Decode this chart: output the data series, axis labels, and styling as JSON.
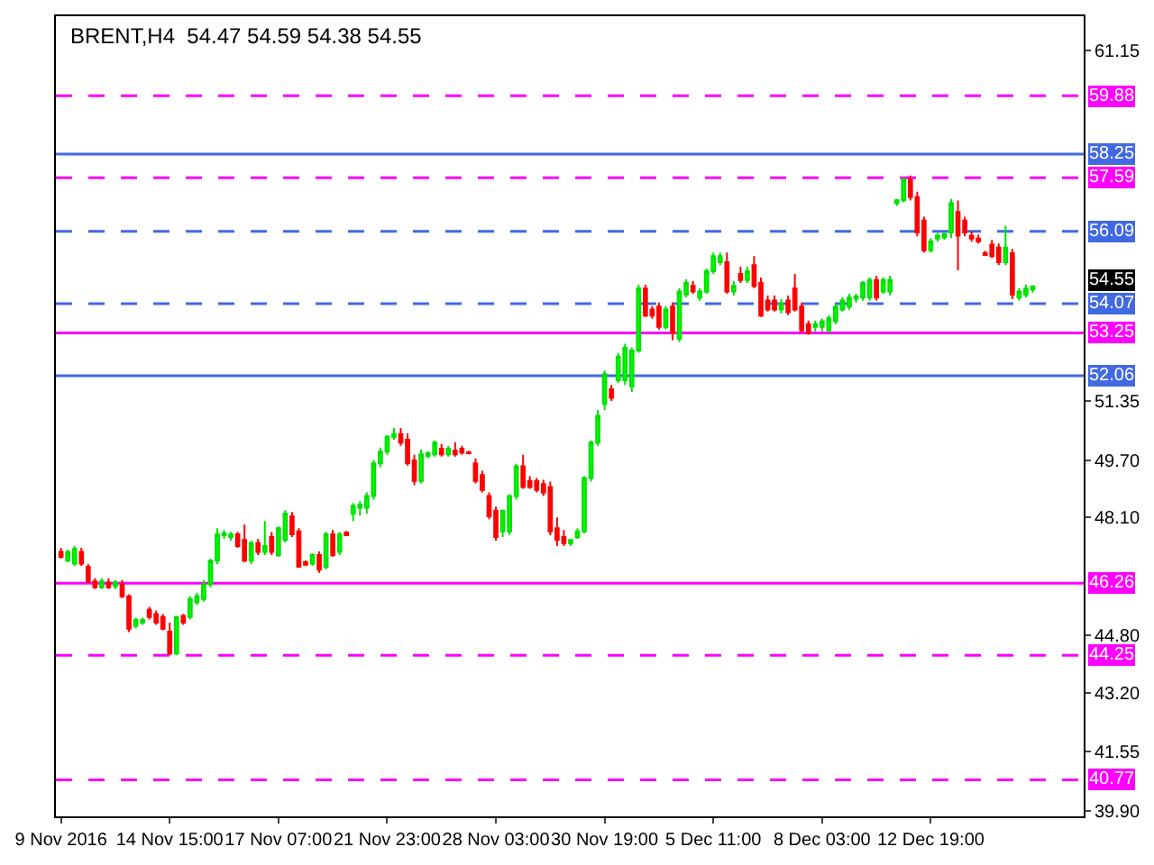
{
  "chart_data": {
    "type": "candlestick",
    "title": "BRENT,H4  54.47 54.59 54.38 54.55",
    "categories": [
      "9 Nov 2016",
      null,
      null,
      null,
      null,
      null,
      null,
      null,
      null,
      null,
      null,
      null,
      null,
      null,
      null,
      null,
      "14 Nov 15:00",
      null,
      null,
      null,
      null,
      null,
      null,
      null,
      null,
      null,
      null,
      null,
      null,
      null,
      null,
      null,
      "17 Nov 07:00",
      null,
      null,
      null,
      null,
      null,
      null,
      null,
      null,
      null,
      null,
      null,
      null,
      null,
      null,
      null,
      "21 Nov 23:00",
      null,
      null,
      null,
      null,
      null,
      null,
      null,
      null,
      null,
      null,
      null,
      null,
      null,
      null,
      null,
      "28 Nov 03:00",
      null,
      null,
      null,
      null,
      null,
      null,
      null,
      null,
      null,
      null,
      null,
      null,
      null,
      null,
      null,
      "30 Nov 19:00",
      null,
      null,
      null,
      null,
      null,
      null,
      null,
      null,
      null,
      null,
      null,
      null,
      null,
      null,
      null,
      "5 Dec 11:00",
      null,
      null,
      null,
      null,
      null,
      null,
      null,
      null,
      null,
      null,
      null,
      null,
      null,
      null,
      null,
      "8 Dec 03:00",
      null,
      null,
      null,
      null,
      null,
      null,
      null,
      null,
      null,
      null,
      null,
      null,
      null,
      null,
      null,
      "12 Dec 19:00",
      null,
      null,
      null,
      null,
      null,
      null,
      null,
      null,
      null,
      null,
      null,
      null,
      null,
      null,
      null
    ],
    "ohlc": [
      [
        47.14,
        47.25,
        46.95,
        47.0
      ],
      [
        46.89,
        47.2,
        46.85,
        47.14
      ],
      [
        46.81,
        47.3,
        46.75,
        47.22
      ],
      [
        47.14,
        47.25,
        46.75,
        46.81
      ],
      [
        46.72,
        46.8,
        46.25,
        46.31
      ],
      [
        46.31,
        46.4,
        46.1,
        46.15
      ],
      [
        46.15,
        46.4,
        46.1,
        46.31
      ],
      [
        46.28,
        46.4,
        46.1,
        46.15
      ],
      [
        46.18,
        46.35,
        46.1,
        46.28
      ],
      [
        46.23,
        46.35,
        45.85,
        45.9
      ],
      [
        45.9,
        45.95,
        44.9,
        44.99
      ],
      [
        45.07,
        45.3,
        45.0,
        45.24
      ],
      [
        45.16,
        45.3,
        45.1,
        45.24
      ],
      [
        45.52,
        45.6,
        45.25,
        45.32
      ],
      [
        45.4,
        45.5,
        45.1,
        45.16
      ],
      [
        45.32,
        45.4,
        44.95,
        44.99
      ],
      [
        44.91,
        45.16,
        44.25,
        44.3
      ],
      [
        44.3,
        45.35,
        44.25,
        45.32
      ],
      [
        45.35,
        45.4,
        45.1,
        45.16
      ],
      [
        45.32,
        45.9,
        45.25,
        45.82
      ],
      [
        45.73,
        46.0,
        45.65,
        45.9
      ],
      [
        45.82,
        46.35,
        45.75,
        46.23
      ],
      [
        46.23,
        46.95,
        46.15,
        46.89
      ],
      [
        46.89,
        47.8,
        46.8,
        47.63
      ],
      [
        47.6,
        47.75,
        47.5,
        47.66
      ],
      [
        47.55,
        47.7,
        47.45,
        47.63
      ],
      [
        47.63,
        47.7,
        47.25,
        47.3
      ],
      [
        47.47,
        47.9,
        46.85,
        46.89
      ],
      [
        46.89,
        47.45,
        46.8,
        47.38
      ],
      [
        47.38,
        47.5,
        47.05,
        47.14
      ],
      [
        47.14,
        48.0,
        47.05,
        47.3
      ],
      [
        47.55,
        47.7,
        47.05,
        47.14
      ],
      [
        47.05,
        47.85,
        47.0,
        47.8
      ],
      [
        47.47,
        48.3,
        47.4,
        48.21
      ],
      [
        48.13,
        48.25,
        47.55,
        47.63
      ],
      [
        47.71,
        47.8,
        46.7,
        46.72
      ],
      [
        46.85,
        46.9,
        46.75,
        46.78
      ],
      [
        46.81,
        47.1,
        46.75,
        47.05
      ],
      [
        47.05,
        47.15,
        46.55,
        46.64
      ],
      [
        46.72,
        47.7,
        46.65,
        47.63
      ],
      [
        47.63,
        47.75,
        47.0,
        47.05
      ],
      [
        47.14,
        47.7,
        47.05,
        47.63
      ],
      [
        47.68,
        47.72,
        47.58,
        47.6
      ],
      [
        48.21,
        48.5,
        48.0,
        48.42
      ],
      [
        48.37,
        48.55,
        48.15,
        48.46
      ],
      [
        48.37,
        48.8,
        48.2,
        48.7
      ],
      [
        48.7,
        49.7,
        48.6,
        49.61
      ],
      [
        49.61,
        50.05,
        49.5,
        49.94
      ],
      [
        49.94,
        50.4,
        49.85,
        50.35
      ],
      [
        50.35,
        50.6,
        50.27,
        50.43
      ],
      [
        50.43,
        50.6,
        50.1,
        50.19
      ],
      [
        50.27,
        50.45,
        49.55,
        49.61
      ],
      [
        49.69,
        49.85,
        49.0,
        49.12
      ],
      [
        49.12,
        50.0,
        49.05,
        49.86
      ],
      [
        49.82,
        49.95,
        49.75,
        49.89
      ],
      [
        49.86,
        50.25,
        49.8,
        50.19
      ],
      [
        50.02,
        50.15,
        49.8,
        49.86
      ],
      [
        49.86,
        50.1,
        49.8,
        50.02
      ],
      [
        49.97,
        50.2,
        49.8,
        49.86
      ],
      [
        50.02,
        50.1,
        49.85,
        49.91
      ],
      [
        49.92,
        49.96,
        49.86,
        49.89
      ],
      [
        49.61,
        49.75,
        49.05,
        49.12
      ],
      [
        49.28,
        49.4,
        48.8,
        48.87
      ],
      [
        48.7,
        48.8,
        48.05,
        48.13
      ],
      [
        48.29,
        48.4,
        47.45,
        47.55
      ],
      [
        47.71,
        48.3,
        47.55,
        48.29
      ],
      [
        47.71,
        48.75,
        47.6,
        48.7
      ],
      [
        48.7,
        49.6,
        48.6,
        49.53
      ],
      [
        49.53,
        49.85,
        48.9,
        48.95
      ],
      [
        49.12,
        49.25,
        48.9,
        48.95
      ],
      [
        49.12,
        49.2,
        48.8,
        48.87
      ],
      [
        49.03,
        49.15,
        48.7,
        48.79
      ],
      [
        48.95,
        49.1,
        47.6,
        47.71
      ],
      [
        47.8,
        48.1,
        47.3,
        47.47
      ],
      [
        47.55,
        47.75,
        47.3,
        47.38
      ],
      [
        47.38,
        47.5,
        47.3,
        47.47
      ],
      [
        47.55,
        47.8,
        47.5,
        47.71
      ],
      [
        47.71,
        49.25,
        47.65,
        49.2
      ],
      [
        49.2,
        50.25,
        49.1,
        50.19
      ],
      [
        50.19,
        51.1,
        50.1,
        50.94
      ],
      [
        51.27,
        52.2,
        51.1,
        52.1
      ],
      [
        51.68,
        51.8,
        51.35,
        51.44
      ],
      [
        51.93,
        52.7,
        51.85,
        52.59
      ],
      [
        51.93,
        52.95,
        51.8,
        52.84
      ],
      [
        51.76,
        52.85,
        51.6,
        52.76
      ],
      [
        52.76,
        54.6,
        52.7,
        54.49
      ],
      [
        54.49,
        54.6,
        53.7,
        53.74
      ],
      [
        53.91,
        54.0,
        53.65,
        53.74
      ],
      [
        53.99,
        54.1,
        53.35,
        53.42
      ],
      [
        53.42,
        54.0,
        53.35,
        53.91
      ],
      [
        53.99,
        54.1,
        53.05,
        53.25
      ],
      [
        53.09,
        54.5,
        53.0,
        54.41
      ],
      [
        54.32,
        54.75,
        54.25,
        54.65
      ],
      [
        54.57,
        54.7,
        54.35,
        54.41
      ],
      [
        54.24,
        54.5,
        54.15,
        54.41
      ],
      [
        54.41,
        55.05,
        54.35,
        54.98
      ],
      [
        54.98,
        55.5,
        54.9,
        55.4
      ],
      [
        55.23,
        55.5,
        55.15,
        55.4
      ],
      [
        55.23,
        55.5,
        54.35,
        54.41
      ],
      [
        54.41,
        54.7,
        54.3,
        54.57
      ],
      [
        54.9,
        55.1,
        54.65,
        54.73
      ],
      [
        54.73,
        55.1,
        54.65,
        54.98
      ],
      [
        55.15,
        55.4,
        54.5,
        54.57
      ],
      [
        54.65,
        54.8,
        53.7,
        53.74
      ],
      [
        54.16,
        54.3,
        53.85,
        53.91
      ],
      [
        54.16,
        54.3,
        53.85,
        53.91
      ],
      [
        53.91,
        54.2,
        53.8,
        54.08
      ],
      [
        54.16,
        54.3,
        53.75,
        53.83
      ],
      [
        54.49,
        54.9,
        53.85,
        53.91
      ],
      [
        53.99,
        54.1,
        53.25,
        53.33
      ],
      [
        53.5,
        53.6,
        53.2,
        53.25
      ],
      [
        53.42,
        53.6,
        53.3,
        53.5
      ],
      [
        53.42,
        53.65,
        53.3,
        53.58
      ],
      [
        53.33,
        53.75,
        53.25,
        53.66
      ],
      [
        53.58,
        54.05,
        53.5,
        53.99
      ],
      [
        53.91,
        54.25,
        53.85,
        54.16
      ],
      [
        53.99,
        54.35,
        53.9,
        54.24
      ],
      [
        54.21,
        54.35,
        54.1,
        54.27
      ],
      [
        54.24,
        54.7,
        54.15,
        54.65
      ],
      [
        54.24,
        54.8,
        54.15,
        54.73
      ],
      [
        54.73,
        54.85,
        54.15,
        54.24
      ],
      [
        54.41,
        54.8,
        54.35,
        54.73
      ],
      [
        54.41,
        54.85,
        54.3,
        54.73
      ],
      [
        56.88,
        57.0,
        56.8,
        56.96
      ],
      [
        56.96,
        57.6,
        56.9,
        57.54
      ],
      [
        57.54,
        57.65,
        56.95,
        57.05
      ],
      [
        57.05,
        57.2,
        55.95,
        56.06
      ],
      [
        56.39,
        56.5,
        55.5,
        55.56
      ],
      [
        55.56,
        55.9,
        55.5,
        55.81
      ],
      [
        55.89,
        56.05,
        55.8,
        55.97
      ],
      [
        55.92,
        56.05,
        55.85,
        56.02
      ],
      [
        56.06,
        57.0,
        55.9,
        56.88
      ],
      [
        56.63,
        56.95,
        55.0,
        55.97
      ],
      [
        56.39,
        56.5,
        55.95,
        56.06
      ],
      [
        55.97,
        56.1,
        55.8,
        55.89
      ],
      [
        55.89,
        56.0,
        55.75,
        55.81
      ],
      [
        55.48,
        55.55,
        55.4,
        55.43
      ],
      [
        55.72,
        55.85,
        55.35,
        55.4
      ],
      [
        55.64,
        55.75,
        55.15,
        55.23
      ],
      [
        55.23,
        56.25,
        55.15,
        55.64
      ],
      [
        55.48,
        55.6,
        54.2,
        54.32
      ],
      [
        54.24,
        54.5,
        54.15,
        54.41
      ],
      [
        54.32,
        54.6,
        54.25,
        54.49
      ],
      [
        54.47,
        54.59,
        54.38,
        54.55
      ]
    ],
    "ylim": [
      39.75,
      62.1
    ],
    "yticks": [
      {
        "value": 39.9,
        "label": "39.90"
      },
      41.55,
      {
        "value": 43.2,
        "label": "43.20"
      },
      {
        "value": 44.8,
        "label": "44.80"
      },
      {
        "value": 48.1,
        "label": "48.10"
      },
      {
        "value": 49.7,
        "label": "49.70"
      },
      51.35,
      61.15
    ],
    "ref_lines": [
      {
        "axis": "y",
        "value": 59.88,
        "label": "59.88",
        "color": "#ff00ff",
        "line_style": "dashed"
      },
      {
        "axis": "y",
        "value": 58.25,
        "label": "58.25",
        "color": "#4169e1",
        "line_style": "solid"
      },
      {
        "axis": "y",
        "value": 57.59,
        "label": "57.59",
        "color": "#ff00ff",
        "line_style": "dashed"
      },
      {
        "axis": "y",
        "value": 56.09,
        "label": "56.09",
        "color": "#4169e1",
        "line_style": "dashed"
      },
      {
        "axis": "y",
        "value": 54.07,
        "label": "54.07",
        "color": "#4169e1",
        "line_style": "dashed"
      },
      {
        "axis": "y",
        "value": 53.25,
        "label": "53.25",
        "color": "#ff00ff",
        "line_style": "solid"
      },
      {
        "axis": "y",
        "value": 52.06,
        "label": "52.06",
        "color": "#4169e1",
        "line_style": "solid"
      },
      {
        "axis": "y",
        "value": 46.26,
        "label": "46.26",
        "color": "#ff00ff",
        "line_style": "solid"
      },
      {
        "axis": "y",
        "value": 44.25,
        "label": "44.25",
        "color": "#ff00ff",
        "line_style": "dashed"
      },
      {
        "axis": "y",
        "value": 40.77,
        "label": "40.77",
        "color": "#ff00ff",
        "line_style": "dashed"
      }
    ],
    "annotations": [
      "54.55"
    ]
  }
}
